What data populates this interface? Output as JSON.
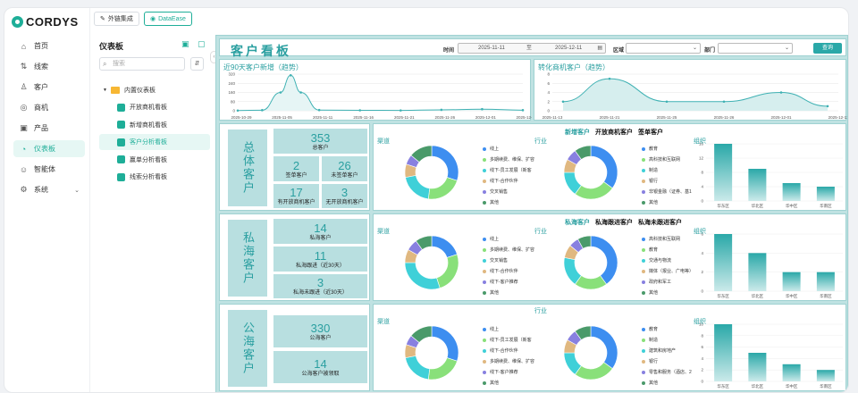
{
  "app": {
    "logo": "CORDYS"
  },
  "nav": {
    "items": [
      {
        "label": "首页",
        "icon": "home-icon",
        "glyph": "⌂"
      },
      {
        "label": "线索",
        "icon": "lead-icon",
        "glyph": "⇅"
      },
      {
        "label": "客户",
        "icon": "customer-icon",
        "glyph": "♙"
      },
      {
        "label": "商机",
        "icon": "opportunity-icon",
        "glyph": "◎"
      },
      {
        "label": "产品",
        "icon": "product-icon",
        "glyph": "▣"
      },
      {
        "label": "仪表板",
        "icon": "dashboard-icon",
        "glyph": "◔",
        "active": true
      },
      {
        "label": "智能体",
        "icon": "agent-icon",
        "glyph": "☺"
      },
      {
        "label": "系统",
        "icon": "system-icon",
        "glyph": "⚙",
        "chevron": "⌄"
      }
    ]
  },
  "top": {
    "integration": "外链集成",
    "dataease": "DataEase"
  },
  "dashboards": {
    "title": "仪表板",
    "search_placeholder": "搜索",
    "folder": "内置仪表板",
    "items": [
      {
        "label": "开放商机看板"
      },
      {
        "label": "新增商机看板"
      },
      {
        "label": "客户分析看板",
        "active": true
      },
      {
        "label": "赢单分析看板"
      },
      {
        "label": "线索分析看板"
      }
    ]
  },
  "board": {
    "title": "客户看板",
    "filters": {
      "time_label": "时间",
      "date_start": "2025-11-11",
      "date_sep": "至",
      "date_end": "2025-12-11",
      "region_label": "区域",
      "dept_label": "部门",
      "query": "查询"
    }
  },
  "colors": {
    "accent": "#1eae98",
    "teal": "#2a9fa0",
    "line": "#3fb1b3"
  },
  "sections": {
    "total": {
      "label": "总体客户",
      "kpis": [
        {
          "n": "353",
          "l": "总客户"
        },
        {
          "n": "2",
          "l": "签单客户"
        },
        {
          "n": "26",
          "l": "未签单客户"
        },
        {
          "n": "17",
          "l": "有开放商机客户"
        },
        {
          "n": "3",
          "l": "无开放商机客户"
        }
      ],
      "tabs": [
        "新增客户",
        "开放商机客户",
        "签单客户"
      ]
    },
    "private": {
      "label": "私海客户",
      "kpis": [
        {
          "n": "14",
          "l": "私海客户"
        },
        {
          "n": "11",
          "l": "私海跟进（近30天）"
        },
        {
          "n": "3",
          "l": "私海未跟进（近30天）"
        }
      ],
      "tabs": [
        "私海客户",
        "私海跟进客户",
        "私海未跟进客户"
      ]
    },
    "public": {
      "label": "公海客户",
      "kpis": [
        {
          "n": "330",
          "l": "公海客户"
        },
        {
          "n": "14",
          "l": "公海客户被领取"
        }
      ]
    }
  },
  "labels": {
    "channel": "渠道",
    "industry": "行业",
    "org": "组织"
  },
  "chart_data": [
    {
      "type": "line",
      "title": "近90天客户新增（趋势）",
      "x": [
        "2025-10-29",
        "2025-11-05",
        "2025-11-11",
        "2025-11-16",
        "2025-11-21",
        "2025-11-26",
        "2025-12-01",
        "2025-12-04"
      ],
      "yticks": [
        "320",
        "240",
        "160",
        "80",
        "0"
      ],
      "ylim": [
        0,
        320
      ],
      "points": [
        [
          0,
          2
        ],
        [
          0.6,
          5
        ],
        [
          1.05,
          160
        ],
        [
          1.3,
          310
        ],
        [
          1.55,
          160
        ],
        [
          2,
          6
        ],
        [
          3,
          4
        ],
        [
          4,
          3
        ],
        [
          5,
          8
        ],
        [
          6,
          14
        ],
        [
          7,
          5
        ]
      ]
    },
    {
      "type": "area",
      "title": "转化商机客户（趋势）",
      "x": [
        "2025-11-13",
        "2025-11-21",
        "2025-11-25",
        "2025-11-26",
        "2025-12-01",
        "2025-12-11"
      ],
      "yticks": [
        "8",
        "6",
        "4",
        "2",
        "0"
      ],
      "ylim": [
        0,
        8
      ],
      "values": [
        2,
        7,
        2,
        2,
        4,
        1
      ]
    },
    {
      "type": "pie",
      "name": "渠道",
      "entries": [
        {
          "label": "线上",
          "value": 30,
          "color": "#3d8ef0"
        },
        {
          "label": "多期续费、维保、扩容",
          "value": 22,
          "color": "#89e07a"
        },
        {
          "label": "线下-员工发展（新客",
          "value": 20,
          "color": "#3fd0d8"
        },
        {
          "label": "线下-合作伙伴",
          "value": 8,
          "color": "#e0b880"
        },
        {
          "label": "交叉销售",
          "value": 6,
          "color": "#8880e0"
        },
        {
          "label": "其他",
          "value": 14,
          "color": "#4a9a6a"
        }
      ]
    },
    {
      "type": "pie",
      "name": "行业",
      "entries": [
        {
          "label": "教育",
          "value": 35,
          "color": "#3d8ef0"
        },
        {
          "label": "高科技和互联网",
          "value": 25,
          "color": "#89e07a"
        },
        {
          "label": "制造",
          "value": 15,
          "color": "#3fd0d8"
        },
        {
          "label": "银行",
          "value": 8,
          "color": "#e0b880"
        },
        {
          "label": "非银金融（证券、基1",
          "value": 7,
          "color": "#8880e0"
        },
        {
          "label": "其他",
          "value": 10,
          "color": "#4a9a6a"
        }
      ]
    },
    {
      "type": "bar",
      "name": "组织1",
      "categories": [
        "华东区",
        "华北区",
        "华中区",
        "华南区"
      ],
      "values": [
        16,
        9,
        5,
        4
      ],
      "yticks": [
        "16",
        "12",
        "8",
        "4",
        "0"
      ],
      "ylim": [
        0,
        16
      ]
    },
    {
      "type": "pie",
      "name": "渠道2",
      "entries": [
        {
          "label": "线上",
          "value": 20,
          "color": "#3d8ef0"
        },
        {
          "label": "多期续费、维保、扩容",
          "value": 25,
          "color": "#89e07a"
        },
        {
          "label": "交叉销售",
          "value": 30,
          "color": "#3fd0d8"
        },
        {
          "label": "线下-合作伙伴",
          "value": 8,
          "color": "#e0b880"
        },
        {
          "label": "线下-客户推荐",
          "value": 7,
          "color": "#8880e0"
        },
        {
          "label": "其他",
          "value": 10,
          "color": "#4a9a6a"
        }
      ]
    },
    {
      "type": "pie",
      "name": "行业2",
      "entries": [
        {
          "label": "高科技和互联网",
          "value": 40,
          "color": "#3d8ef0"
        },
        {
          "label": "教育",
          "value": 20,
          "color": "#89e07a"
        },
        {
          "label": "交通与物流",
          "value": 18,
          "color": "#3fd0d8"
        },
        {
          "label": "媒体（报业、广电等）",
          "value": 8,
          "color": "#e0b880"
        },
        {
          "label": "政府和军工",
          "value": 6,
          "color": "#8880e0"
        },
        {
          "label": "其他",
          "value": 8,
          "color": "#4a9a6a"
        }
      ]
    },
    {
      "type": "bar",
      "name": "组织2",
      "categories": [
        "华东区",
        "华北区",
        "华中区",
        "华南区"
      ],
      "values": [
        6,
        4,
        2,
        2
      ],
      "yticks": [
        "6",
        "4",
        "2",
        "0"
      ],
      "ylim": [
        0,
        6
      ]
    },
    {
      "type": "pie",
      "name": "渠道3",
      "entries": [
        {
          "label": "线上",
          "value": 30,
          "color": "#3d8ef0"
        },
        {
          "label": "线下-员工发展（新客",
          "value": 22,
          "color": "#89e07a"
        },
        {
          "label": "线下-合作伙伴",
          "value": 20,
          "color": "#3fd0d8"
        },
        {
          "label": "多期续费、维保、扩容",
          "value": 8,
          "color": "#e0b880"
        },
        {
          "label": "线下-客户推荐",
          "value": 6,
          "color": "#8880e0"
        },
        {
          "label": "其他",
          "value": 14,
          "color": "#4a9a6a"
        }
      ]
    },
    {
      "type": "pie",
      "name": "行业3",
      "entries": [
        {
          "label": "教育",
          "value": 35,
          "color": "#3d8ef0"
        },
        {
          "label": "制造",
          "value": 25,
          "color": "#89e07a"
        },
        {
          "label": "建筑和房地产",
          "value": 15,
          "color": "#3fd0d8"
        },
        {
          "label": "银行",
          "value": 8,
          "color": "#e0b880"
        },
        {
          "label": "零售和服务（酒店、2",
          "value": 7,
          "color": "#8880e0"
        },
        {
          "label": "其他",
          "value": 10,
          "color": "#4a9a6a"
        }
      ]
    },
    {
      "type": "bar",
      "name": "组织3",
      "categories": [
        "华东区",
        "华北区",
        "华中区",
        "华南区"
      ],
      "values": [
        10,
        5,
        3,
        2
      ],
      "yticks": [
        "10",
        "8",
        "6",
        "4",
        "2",
        "0"
      ],
      "ylim": [
        0,
        10
      ]
    }
  ]
}
